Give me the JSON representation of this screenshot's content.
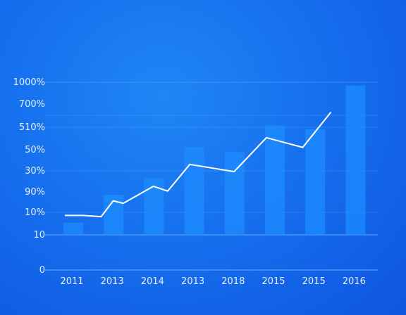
{
  "chart_data": {
    "type": "bar",
    "title": "",
    "xlabel": "",
    "ylabel": "",
    "categories": [
      "2011",
      "2013",
      "2014",
      "2013",
      "2018",
      "2015",
      "2015",
      "2016"
    ],
    "y_tick_labels": [
      "0",
      "10",
      "10%",
      "90%",
      "30%",
      "50%",
      "510%",
      "700%",
      "1000%"
    ],
    "values": [
      10,
      33,
      47,
      72,
      68,
      90,
      87,
      123
    ],
    "line": [
      {
        "x": 0,
        "y": 16
      },
      {
        "x": 0.45,
        "y": 16
      },
      {
        "x": 0.9,
        "y": 15
      },
      {
        "x": 1.2,
        "y": 28
      },
      {
        "x": 1.45,
        "y": 26
      },
      {
        "x": 2.2,
        "y": 40
      },
      {
        "x": 2.55,
        "y": 36
      },
      {
        "x": 3.1,
        "y": 58
      },
      {
        "x": 4.2,
        "y": 52
      },
      {
        "x": 5.0,
        "y": 80
      },
      {
        "x": 5.9,
        "y": 72
      },
      {
        "x": 6.6,
        "y": 101
      }
    ],
    "grid": true,
    "legend": "none",
    "colors": {
      "bar": "#1e8cff",
      "line": "#ffffff",
      "background": "#1670ee"
    }
  }
}
